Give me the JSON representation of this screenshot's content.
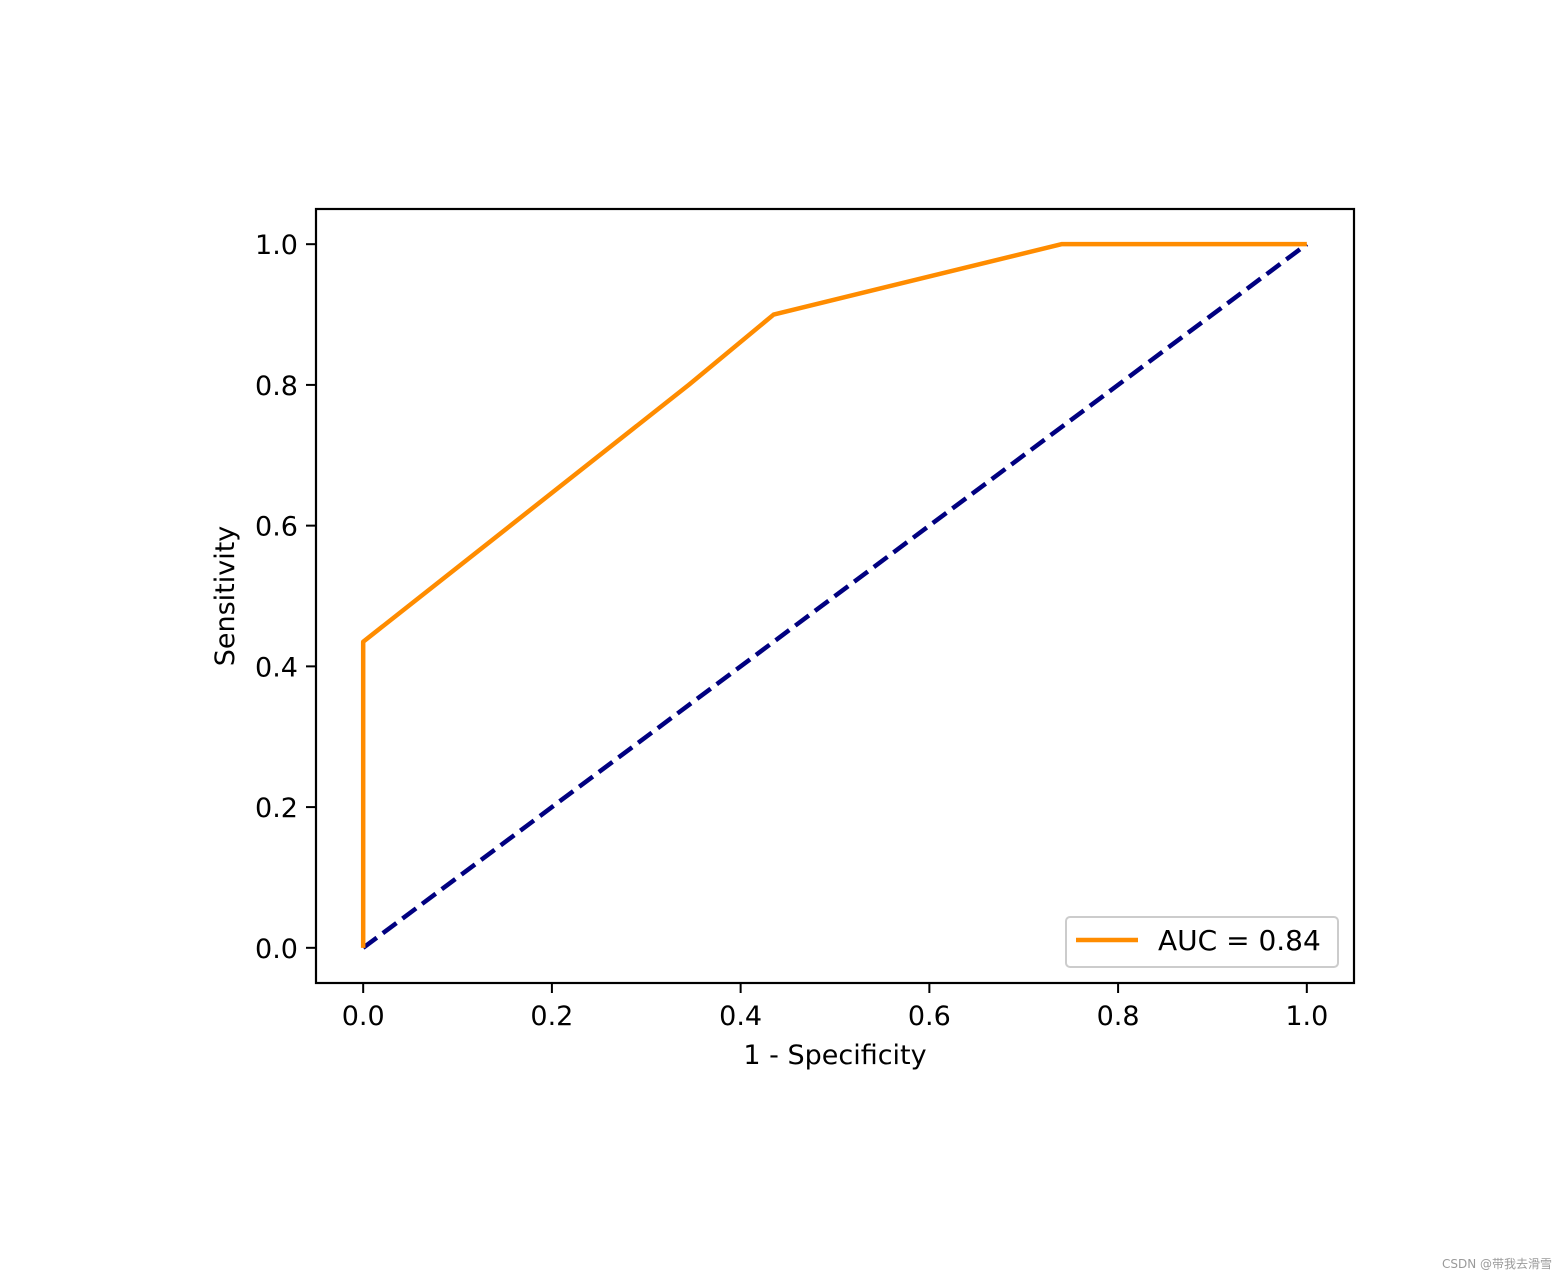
{
  "chart_data": {
    "type": "line",
    "xlabel": "1 - Specificity",
    "ylabel": "Sensitivity",
    "xlim": [
      -0.05,
      1.05
    ],
    "ylim": [
      -0.05,
      1.05
    ],
    "xticks": [
      0.0,
      0.2,
      0.4,
      0.6,
      0.8,
      1.0
    ],
    "yticks": [
      0.0,
      0.2,
      0.4,
      0.6,
      0.8,
      1.0
    ],
    "tick_labels_x": [
      "0.0",
      "0.2",
      "0.4",
      "0.6",
      "0.8",
      "1.0"
    ],
    "tick_labels_y": [
      "0.0",
      "0.2",
      "0.4",
      "0.6",
      "0.8",
      "1.0"
    ],
    "grid": false,
    "legend_position": "lower-right",
    "series": [
      {
        "name": "AUC = 0.84",
        "color": "#ff8c00",
        "line_style": "solid",
        "x": [
          0.0,
          0.0,
          0.345,
          0.435,
          0.74,
          1.0
        ],
        "y": [
          0.0,
          0.435,
          0.8,
          0.9,
          1.0,
          1.0
        ]
      },
      {
        "color": "#000080",
        "line_style": "dashed",
        "x": [
          0.0,
          1.0
        ],
        "y": [
          0.0,
          1.0
        ]
      }
    ]
  },
  "watermark": "CSDN @带我去滑雪"
}
